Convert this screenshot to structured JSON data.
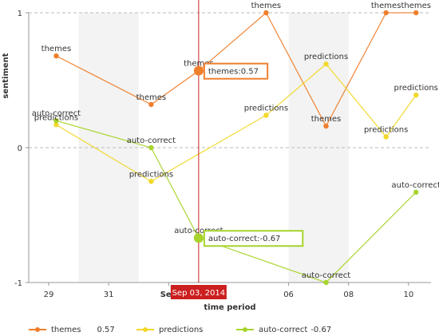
{
  "colors": {
    "themes": "#f07f2c",
    "predictions": "#f2d82b",
    "auto_correct": "#a7d42c",
    "crosshair": "#cc1f1f",
    "band": "#f3f3f3",
    "axis": "#999999"
  },
  "chart_data": {
    "type": "line",
    "title": "",
    "xlabel": "time period",
    "ylabel": "sentiment",
    "x_range": [
      "2014-08-28T08:00",
      "2014-09-10T18:00"
    ],
    "ylim": [
      -1,
      1
    ],
    "x_ticks": [
      "29",
      "31",
      "Sep",
      "06",
      "08",
      "10"
    ],
    "y_ticks": [
      "1",
      "0",
      "-1"
    ],
    "series": [
      {
        "key": "themes",
        "name": "themes",
        "points": [
          {
            "x": "2014-08-29T06:00",
            "y": 0.68,
            "label": "themes"
          },
          {
            "x": "2014-09-01T10:00",
            "y": 0.32,
            "label": "themes"
          },
          {
            "x": "2014-09-03T00:00",
            "y": 0.57,
            "label": "themes"
          },
          {
            "x": "2014-09-05T06:00",
            "y": 1.0,
            "label": "themes"
          },
          {
            "x": "2014-09-07T06:00",
            "y": 0.16,
            "label": "themes"
          },
          {
            "x": "2014-09-09T06:00",
            "y": 1.0,
            "label": "themes"
          },
          {
            "x": "2014-09-10T06:00",
            "y": 1.0,
            "label": "themes"
          }
        ]
      },
      {
        "key": "predictions",
        "name": "predictions",
        "points": [
          {
            "x": "2014-08-29T06:00",
            "y": 0.17,
            "label": "predictions"
          },
          {
            "x": "2014-09-01T10:00",
            "y": -0.25,
            "label": "predictions"
          },
          {
            "x": "2014-09-05T06:00",
            "y": 0.24,
            "label": "predictions"
          },
          {
            "x": "2014-09-07T06:00",
            "y": 0.62,
            "label": "predictions"
          },
          {
            "x": "2014-09-09T06:00",
            "y": 0.08,
            "label": "predictions"
          },
          {
            "x": "2014-09-10T06:00",
            "y": 0.39,
            "label": "predictions"
          }
        ]
      },
      {
        "key": "auto_correct",
        "name": "auto-correct",
        "points": [
          {
            "x": "2014-08-29T06:00",
            "y": 0.2,
            "label": "auto-correct"
          },
          {
            "x": "2014-09-01T10:00",
            "y": 0.0,
            "label": "auto-correct"
          },
          {
            "x": "2014-09-03T00:00",
            "y": -0.67,
            "label": "auto-correct"
          },
          {
            "x": "2014-09-07T06:00",
            "y": -1.0,
            "label": "auto-correct"
          },
          {
            "x": "2014-09-10T06:00",
            "y": -0.33,
            "label": "auto-correct"
          }
        ]
      }
    ],
    "crosshair": {
      "x": "2014-09-03T00:00",
      "date_label": "Sep 03, 2014",
      "tooltips": [
        {
          "key": "themes",
          "text": "themes:0.57",
          "y": 0.57
        },
        {
          "key": "auto_correct",
          "text": "auto-correct:-0.67",
          "y": -0.67
        }
      ]
    }
  },
  "legend": [
    {
      "key": "themes",
      "label": "themes",
      "value": "0.57"
    },
    {
      "key": "predictions",
      "label": "predictions",
      "value": ""
    },
    {
      "key": "auto_correct",
      "label": "auto-correct",
      "value": "-0.67"
    }
  ]
}
